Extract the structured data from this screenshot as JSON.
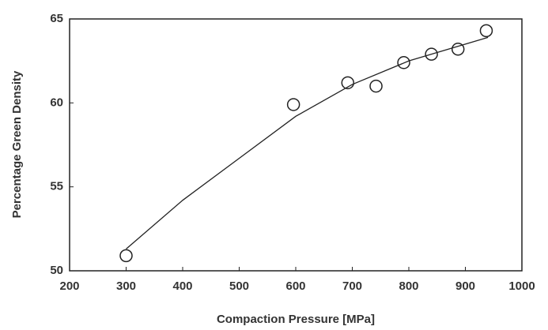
{
  "chart_data": {
    "type": "scatter",
    "x_label": "Compaction Pressure [MPa]",
    "y_label": "Percentage Green Density",
    "xlim": [
      200,
      1000
    ],
    "xticks": [
      200,
      300,
      400,
      500,
      600,
      700,
      800,
      900,
      1000
    ],
    "ylim": [
      50,
      65
    ],
    "yticks": [
      50,
      55,
      60,
      65
    ],
    "points": {
      "x": [
        300,
        596,
        692,
        742,
        791,
        840,
        887,
        937
      ],
      "values": [
        50.9,
        59.9,
        61.2,
        61.0,
        62.4,
        62.9,
        63.2,
        64.3
      ],
      "color": "#222222"
    },
    "fit": {
      "x": [
        300,
        400,
        500,
        600,
        700,
        800,
        900,
        940
      ],
      "values": [
        51.3,
        54.2,
        56.7,
        59.2,
        61.1,
        62.5,
        63.5,
        63.9
      ],
      "color": "#222222"
    }
  }
}
